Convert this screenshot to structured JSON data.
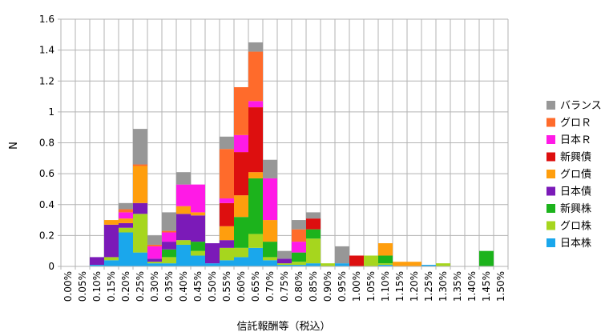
{
  "chart_data": {
    "type": "bar",
    "stacked": true,
    "xlabel": "信託報酬等（税込）",
    "ylabel": "N",
    "ylim": [
      0,
      1.6
    ],
    "yticks": [
      "0",
      "0.2",
      "0.4",
      "0.6",
      "0.8",
      "1",
      "1.2",
      "1.4",
      "1.6"
    ],
    "ytick_values": [
      0,
      0.2,
      0.4,
      0.6,
      0.8,
      1.0,
      1.2,
      1.4,
      1.6
    ],
    "grid": true,
    "legend_position": "right",
    "categories": [
      "0.00%",
      "0.05%",
      "0.10%",
      "0.15%",
      "0.20%",
      "0.25%",
      "0.30%",
      "0.35%",
      "0.40%",
      "0.45%",
      "0.50%",
      "0.55%",
      "0.60%",
      "0.65%",
      "0.70%",
      "0.75%",
      "0.80%",
      "0.85%",
      "0.90%",
      "0.95%",
      "1.00%",
      "1.05%",
      "1.10%",
      "1.15%",
      "1.20%",
      "1.25%",
      "1.30%",
      "1.35%",
      "1.40%",
      "1.45%",
      "1.50%"
    ],
    "series": [
      {
        "name": "日本株",
        "color": "#1aa7ec",
        "values": [
          0,
          0,
          0.01,
          0.04,
          0.22,
          0.09,
          0.02,
          0.02,
          0.14,
          0.07,
          0.02,
          0.04,
          0.06,
          0.12,
          0.04,
          0.01,
          0.01,
          0.02,
          0,
          0.02,
          0,
          0,
          0.01,
          0,
          0,
          0.01,
          0,
          0,
          0,
          0,
          0
        ]
      },
      {
        "name": "グロ株",
        "color": "#a6d61e",
        "values": [
          0,
          0,
          0,
          0.02,
          0.03,
          0.25,
          0.01,
          0.04,
          0.03,
          0.03,
          0,
          0.08,
          0.06,
          0.09,
          0.02,
          0.01,
          0.02,
          0.16,
          0.02,
          0,
          0,
          0.07,
          0.01,
          0,
          0,
          0,
          0.02,
          0,
          0,
          0,
          0
        ]
      },
      {
        "name": "新興株",
        "color": "#1cb31c",
        "values": [
          0,
          0,
          0,
          0,
          0,
          0,
          0,
          0.05,
          0,
          0.06,
          0,
          0,
          0.2,
          0.36,
          0.1,
          0,
          0.06,
          0.06,
          0,
          0,
          0,
          0,
          0.05,
          0,
          0,
          0,
          0,
          0,
          0,
          0.1,
          0
        ]
      },
      {
        "name": "日本債",
        "color": "#7b1ab8",
        "values": [
          0,
          0,
          0.05,
          0.21,
          0.03,
          0.07,
          0.02,
          0.05,
          0.17,
          0.17,
          0.13,
          0.05,
          0,
          0,
          0,
          0.03,
          0,
          0,
          0,
          0,
          0,
          0,
          0,
          0,
          0,
          0,
          0,
          0,
          0,
          0,
          0
        ]
      },
      {
        "name": "グロ債",
        "color": "#ff9e0d",
        "values": [
          0,
          0,
          0,
          0.03,
          0.03,
          0.24,
          0,
          0,
          0.05,
          0.02,
          0,
          0.09,
          0.14,
          0.04,
          0.14,
          0,
          0,
          0,
          0,
          0,
          0,
          0,
          0.08,
          0.03,
          0.03,
          0,
          0,
          0,
          0,
          0,
          0
        ]
      },
      {
        "name": "新興債",
        "color": "#dd0f0f",
        "values": [
          0,
          0,
          0,
          0,
          0,
          0,
          0,
          0,
          0,
          0,
          0,
          0.15,
          0.28,
          0.42,
          0,
          0,
          0,
          0.07,
          0,
          0,
          0.07,
          0,
          0,
          0,
          0,
          0,
          0,
          0,
          0,
          0,
          0
        ]
      },
      {
        "name": "日本Ｒ",
        "color": "#ff1ae6",
        "values": [
          0,
          0,
          0,
          0,
          0.04,
          0,
          0.08,
          0.06,
          0.14,
          0.18,
          0,
          0.03,
          0.11,
          0.04,
          0.27,
          0,
          0.07,
          0,
          0,
          0,
          0,
          0,
          0,
          0,
          0,
          0,
          0,
          0,
          0,
          0,
          0
        ]
      },
      {
        "name": "グロＲ",
        "color": "#ff6b2b",
        "values": [
          0,
          0,
          0,
          0,
          0.02,
          0.01,
          0.01,
          0.01,
          0,
          0,
          0,
          0.32,
          0.31,
          0.32,
          0,
          0,
          0.08,
          0,
          0,
          0,
          0,
          0,
          0,
          0,
          0,
          0,
          0,
          0,
          0,
          0,
          0
        ]
      },
      {
        "name": "バランス",
        "color": "#979797",
        "values": [
          0,
          0,
          0,
          0,
          0.04,
          0.23,
          0.06,
          0.12,
          0.08,
          0,
          0,
          0.08,
          0,
          0.06,
          0.12,
          0.05,
          0.06,
          0.04,
          0,
          0.11,
          0,
          0,
          0,
          0,
          0,
          0,
          0,
          0,
          0,
          0,
          0
        ]
      }
    ]
  }
}
